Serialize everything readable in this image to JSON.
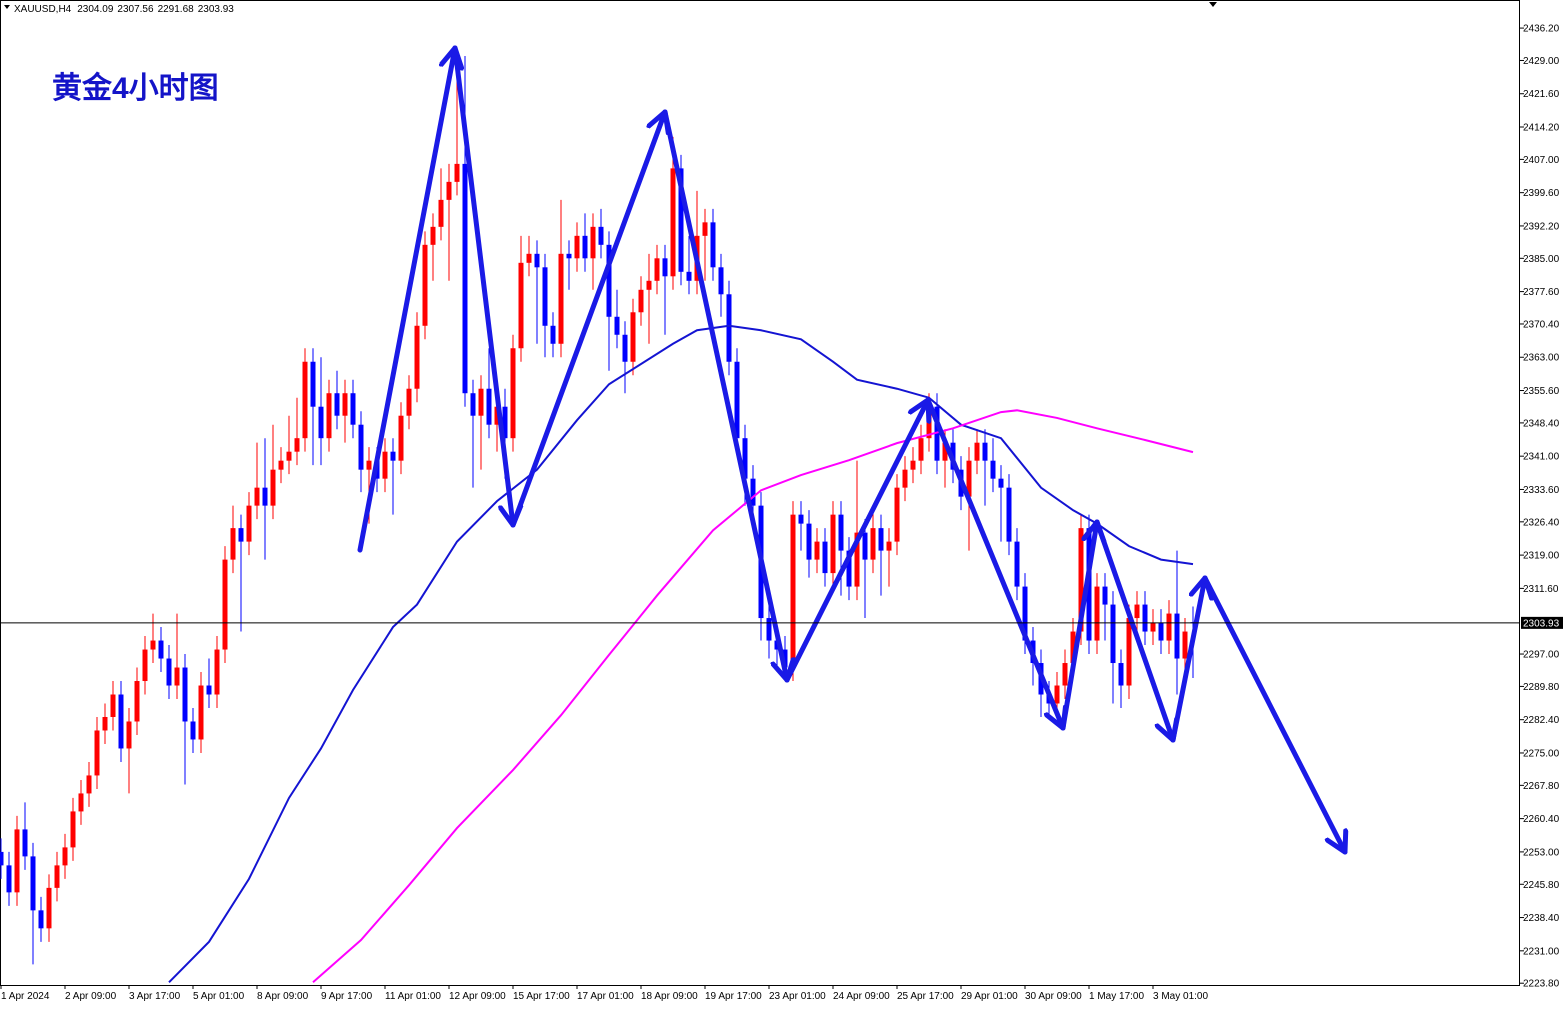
{
  "chart_data": {
    "type": "candlestick",
    "title": "黄金4小时图",
    "symbol": "XAUUSD,H4",
    "up_color": "#ff0000",
    "down_color": "#0000ff",
    "ylim": [
      2223.4,
      2442.0
    ],
    "yticks": [
      {
        "value": 2436.2,
        "label": "2436.20"
      },
      {
        "value": 2429,
        "label": "2429.00"
      },
      {
        "value": 2421.6,
        "label": "2421.60"
      },
      {
        "value": 2414.2,
        "label": "2414.20"
      },
      {
        "value": 2407,
        "label": "2407.00"
      },
      {
        "value": 2399.6,
        "label": "2399.60"
      },
      {
        "value": 2392.2,
        "label": "2392.20"
      },
      {
        "value": 2385,
        "label": "2385.00"
      },
      {
        "value": 2377.6,
        "label": "2377.60"
      },
      {
        "value": 2370.4,
        "label": "2370.40"
      },
      {
        "value": 2363,
        "label": "2363.00"
      },
      {
        "value": 2355.6,
        "label": "2355.60"
      },
      {
        "value": 2348.4,
        "label": "2348.40"
      },
      {
        "value": 2341,
        "label": "2341.00"
      },
      {
        "value": 2333.6,
        "label": "2333.60"
      },
      {
        "value": 2326.4,
        "label": "2326.40"
      },
      {
        "value": 2319,
        "label": "2319.00"
      },
      {
        "value": 2311.6,
        "label": "2311.60"
      },
      {
        "value": 2297,
        "label": "2297.00"
      },
      {
        "value": 2289.8,
        "label": "2289.80"
      },
      {
        "value": 2282.4,
        "label": "2282.40"
      },
      {
        "value": 2275,
        "label": "2275.00"
      },
      {
        "value": 2267.8,
        "label": "2267.80"
      },
      {
        "value": 2260.4,
        "label": "2260.40"
      },
      {
        "value": 2253,
        "label": "2253.00"
      },
      {
        "value": 2245.8,
        "label": "2245.80"
      },
      {
        "value": 2238.4,
        "label": "2238.40"
      },
      {
        "value": 2231,
        "label": "2231.00"
      },
      {
        "value": 2223.8,
        "label": "2223.80"
      }
    ],
    "categories": [
      "1 Apr 2024",
      null,
      null,
      null,
      null,
      null,
      null,
      null,
      "2 Apr 09:00",
      null,
      null,
      null,
      null,
      null,
      null,
      null,
      "3 Apr 17:00",
      null,
      null,
      null,
      null,
      null,
      null,
      null,
      "5 Apr 01:00",
      null,
      null,
      null,
      null,
      null,
      null,
      null,
      "8 Apr 09:00",
      null,
      null,
      null,
      null,
      null,
      null,
      null,
      "9 Apr 17:00",
      null,
      null,
      null,
      null,
      null,
      null,
      null,
      "11 Apr 01:00",
      null,
      null,
      null,
      null,
      null,
      null,
      null,
      "12 Apr 09:00",
      null,
      null,
      null,
      null,
      null,
      null,
      null,
      "15 Apr 17:00",
      null,
      null,
      null,
      null,
      null,
      null,
      null,
      "17 Apr 01:00",
      null,
      null,
      null,
      null,
      null,
      null,
      null,
      "18 Apr 09:00",
      null,
      null,
      null,
      null,
      null,
      null,
      null,
      "19 Apr 17:00",
      null,
      null,
      null,
      null,
      null,
      null,
      null,
      "23 Apr 01:00",
      null,
      null,
      null,
      null,
      null,
      null,
      null,
      "24 Apr 09:00",
      null,
      null,
      null,
      null,
      null,
      null,
      null,
      "25 Apr 17:00",
      null,
      null,
      null,
      null,
      null,
      null,
      null,
      "29 Apr 01:00",
      null,
      null,
      null,
      null,
      null,
      null,
      null,
      "30 Apr 09:00",
      null,
      null,
      null,
      null,
      null,
      null,
      null,
      "1 May 17:00",
      null,
      null,
      null,
      null,
      null,
      null,
      null,
      "3 May 01:00",
      null,
      null,
      null,
      null,
      null
    ],
    "candles": [
      [
        2253,
        2256,
        2247,
        2250
      ],
      [
        2250,
        2253,
        2241,
        2244
      ],
      [
        2244,
        2261,
        2241,
        2258
      ],
      [
        2258,
        2264,
        2249,
        2252
      ],
      [
        2252,
        2255,
        2228,
        2240
      ],
      [
        2240,
        2243,
        2233,
        2236
      ],
      [
        2236,
        2248,
        2233,
        2245
      ],
      [
        2245,
        2253,
        2242,
        2250
      ],
      [
        2250,
        2257,
        2247,
        2254
      ],
      [
        2254,
        2265,
        2251,
        2262
      ],
      [
        2262,
        2269,
        2259,
        2266
      ],
      [
        2266,
        2273,
        2263,
        2270
      ],
      [
        2270,
        2283,
        2267,
        2280
      ],
      [
        2280,
        2286,
        2277,
        2283
      ],
      [
        2283,
        2291,
        2280,
        2288
      ],
      [
        2288,
        2291,
        2273,
        2276
      ],
      [
        2276,
        2285,
        2266,
        2282
      ],
      [
        2282,
        2294,
        2279,
        2291
      ],
      [
        2291,
        2301,
        2288,
        2298
      ],
      [
        2298,
        2306,
        2295,
        2300
      ],
      [
        2300,
        2303,
        2293,
        2296
      ],
      [
        2296,
        2299,
        2287,
        2290
      ],
      [
        2290,
        2306,
        2287,
        2294
      ],
      [
        2294,
        2297,
        2268,
        2282
      ],
      [
        2282,
        2285,
        2275,
        2278
      ],
      [
        2278,
        2293,
        2275,
        2290
      ],
      [
        2290,
        2296,
        2285,
        2288
      ],
      [
        2288,
        2301,
        2285,
        2298
      ],
      [
        2298,
        2321,
        2295,
        2318
      ],
      [
        2318,
        2330,
        2315,
        2325
      ],
      [
        2325,
        2328,
        2302,
        2322
      ],
      [
        2322,
        2333,
        2319,
        2330
      ],
      [
        2330,
        2344,
        2327,
        2334
      ],
      [
        2334,
        2345,
        2318,
        2330
      ],
      [
        2330,
        2348,
        2327,
        2338
      ],
      [
        2338,
        2343,
        2335,
        2340
      ],
      [
        2340,
        2350,
        2337,
        2342
      ],
      [
        2342,
        2354,
        2339,
        2345
      ],
      [
        2345,
        2365,
        2342,
        2362
      ],
      [
        2362,
        2365,
        2339,
        2352
      ],
      [
        2352,
        2363,
        2339,
        2345
      ],
      [
        2345,
        2358,
        2342,
        2355
      ],
      [
        2355,
        2360,
        2347,
        2350
      ],
      [
        2350,
        2358,
        2344,
        2355
      ],
      [
        2355,
        2358,
        2345,
        2348
      ],
      [
        2348,
        2351,
        2333,
        2338
      ],
      [
        2338,
        2343,
        2326,
        2340
      ],
      [
        2340,
        2343,
        2333,
        2336
      ],
      [
        2336,
        2345,
        2333,
        2342
      ],
      [
        2342,
        2345,
        2328,
        2340
      ],
      [
        2340,
        2353,
        2337,
        2350
      ],
      [
        2350,
        2359,
        2347,
        2356
      ],
      [
        2356,
        2373,
        2353,
        2370
      ],
      [
        2370,
        2391,
        2367,
        2388
      ],
      [
        2388,
        2395,
        2380,
        2392
      ],
      [
        2392,
        2405,
        2389,
        2398
      ],
      [
        2398,
        2406,
        2380,
        2402
      ],
      [
        2402,
        2431,
        2399,
        2406
      ],
      [
        2406,
        2430,
        2352,
        2355
      ],
      [
        2355,
        2358,
        2334,
        2350
      ],
      [
        2350,
        2359,
        2338,
        2356
      ],
      [
        2356,
        2365,
        2345,
        2348
      ],
      [
        2348,
        2358,
        2342,
        2352
      ],
      [
        2352,
        2356,
        2336,
        2345
      ],
      [
        2345,
        2368,
        2342,
        2365
      ],
      [
        2365,
        2390,
        2362,
        2384
      ],
      [
        2384,
        2390,
        2381,
        2386
      ],
      [
        2386,
        2389,
        2366,
        2383
      ],
      [
        2383,
        2386,
        2363,
        2370
      ],
      [
        2370,
        2373,
        2363,
        2366
      ],
      [
        2366,
        2398,
        2363,
        2386
      ],
      [
        2386,
        2389,
        2378,
        2385
      ],
      [
        2385,
        2393,
        2382,
        2390
      ],
      [
        2390,
        2395,
        2382,
        2385
      ],
      [
        2385,
        2395,
        2378,
        2392
      ],
      [
        2392,
        2396,
        2385,
        2388
      ],
      [
        2388,
        2391,
        2360,
        2372
      ],
      [
        2372,
        2378,
        2365,
        2368
      ],
      [
        2368,
        2371,
        2355,
        2362
      ],
      [
        2362,
        2376,
        2359,
        2373
      ],
      [
        2373,
        2381,
        2370,
        2378
      ],
      [
        2378,
        2386,
        2366,
        2380
      ],
      [
        2380,
        2388,
        2377,
        2385
      ],
      [
        2385,
        2388,
        2368,
        2381
      ],
      [
        2381,
        2412,
        2378,
        2405
      ],
      [
        2405,
        2408,
        2379,
        2382
      ],
      [
        2382,
        2390,
        2377,
        2380
      ],
      [
        2380,
        2400,
        2377,
        2390
      ],
      [
        2390,
        2396,
        2380,
        2393
      ],
      [
        2393,
        2396,
        2380,
        2383
      ],
      [
        2383,
        2386,
        2372,
        2377
      ],
      [
        2377,
        2380,
        2359,
        2362
      ],
      [
        2362,
        2365,
        2342,
        2345
      ],
      [
        2345,
        2348,
        2330,
        2336
      ],
      [
        2336,
        2339,
        2325,
        2330
      ],
      [
        2330,
        2333,
        2300,
        2305
      ],
      [
        2305,
        2308,
        2296,
        2300
      ],
      [
        2300,
        2303,
        2293,
        2298
      ],
      [
        2298,
        2301,
        2291,
        2294
      ],
      [
        2294,
        2331,
        2291,
        2328
      ],
      [
        2328,
        2331,
        2320,
        2326
      ],
      [
        2326,
        2329,
        2314,
        2318
      ],
      [
        2318,
        2325,
        2315,
        2322
      ],
      [
        2322,
        2325,
        2312,
        2315
      ],
      [
        2315,
        2331,
        2312,
        2328
      ],
      [
        2328,
        2331,
        2310,
        2320
      ],
      [
        2320,
        2323,
        2309,
        2312
      ],
      [
        2312,
        2340,
        2309,
        2324
      ],
      [
        2324,
        2327,
        2305,
        2318
      ],
      [
        2318,
        2330,
        2315,
        2325
      ],
      [
        2325,
        2328,
        2310,
        2320
      ],
      [
        2320,
        2325,
        2312,
        2322
      ],
      [
        2322,
        2337,
        2319,
        2334
      ],
      [
        2334,
        2341,
        2331,
        2338
      ],
      [
        2338,
        2343,
        2335,
        2340
      ],
      [
        2340,
        2348,
        2337,
        2345
      ],
      [
        2345,
        2355,
        2342,
        2352
      ],
      [
        2352,
        2355,
        2337,
        2340
      ],
      [
        2340,
        2347,
        2334,
        2344
      ],
      [
        2344,
        2347,
        2335,
        2338
      ],
      [
        2338,
        2341,
        2329,
        2332
      ],
      [
        2332,
        2343,
        2320,
        2340
      ],
      [
        2340,
        2347,
        2337,
        2344
      ],
      [
        2344,
        2347,
        2330,
        2340
      ],
      [
        2340,
        2345,
        2333,
        2336
      ],
      [
        2336,
        2339,
        2322,
        2334
      ],
      [
        2334,
        2337,
        2319,
        2322
      ],
      [
        2322,
        2325,
        2309,
        2312
      ],
      [
        2312,
        2315,
        2297,
        2300
      ],
      [
        2300,
        2303,
        2290,
        2295
      ],
      [
        2295,
        2298,
        2283,
        2288
      ],
      [
        2288,
        2291,
        2283,
        2286
      ],
      [
        2286,
        2293,
        2283,
        2290
      ],
      [
        2290,
        2298,
        2287,
        2295
      ],
      [
        2295,
        2305,
        2292,
        2302
      ],
      [
        2302,
        2328,
        2299,
        2325
      ],
      [
        2325,
        2328,
        2297,
        2300
      ],
      [
        2300,
        2315,
        2297,
        2312
      ],
      [
        2312,
        2315,
        2300,
        2308
      ],
      [
        2308,
        2311,
        2286,
        2295
      ],
      [
        2295,
        2298,
        2285,
        2290
      ],
      [
        2290,
        2308,
        2287,
        2305
      ],
      [
        2305,
        2311,
        2302,
        2308
      ],
      [
        2308,
        2311,
        2299,
        2302
      ],
      [
        2302,
        2307,
        2299,
        2304
      ],
      [
        2304,
        2307,
        2297,
        2300
      ],
      [
        2300,
        2309,
        2297,
        2306
      ],
      [
        2306,
        2320,
        2288,
        2296
      ],
      [
        2296,
        2305,
        2293,
        2302
      ],
      [
        2304.09,
        2307.56,
        2291.68,
        2303.93
      ]
    ],
    "overlays": [
      {
        "color": "#1414d2",
        "x": [
          21,
          26,
          31,
          36,
          40,
          44,
          49,
          52,
          57,
          62,
          67,
          72,
          76,
          84,
          87,
          91,
          95,
          100,
          104,
          107,
          112,
          116,
          120,
          125,
          130,
          134,
          137,
          141,
          145,
          149
        ],
        "values": [
          2224,
          2233,
          2247,
          2265,
          2276,
          2289,
          2303,
          2308,
          2322,
          2331,
          2338,
          2349,
          2357,
          2366,
          2369,
          2370,
          2369,
          2367,
          2362,
          2358,
          2356,
          2354,
          2348,
          2345,
          2334,
          2329,
          2326,
          2321,
          2318,
          2317
        ]
      },
      {
        "color": "#ff00ff",
        "x": [
          39,
          45,
          51,
          57,
          64,
          70,
          76,
          82,
          89,
          95,
          100,
          106,
          112,
          119,
          125,
          127,
          132,
          137,
          143,
          149
        ],
        "values": [
          2224,
          2233.4,
          2245.6,
          2258.3,
          2271.2,
          2283.4,
          2296.8,
          2310,
          2324.5,
          2333.4,
          2336.8,
          2340.1,
          2343.9,
          2347.2,
          2350.8,
          2351.2,
          2349.5,
          2347.2,
          2344.6,
          2341.9
        ]
      }
    ]
  }
}
